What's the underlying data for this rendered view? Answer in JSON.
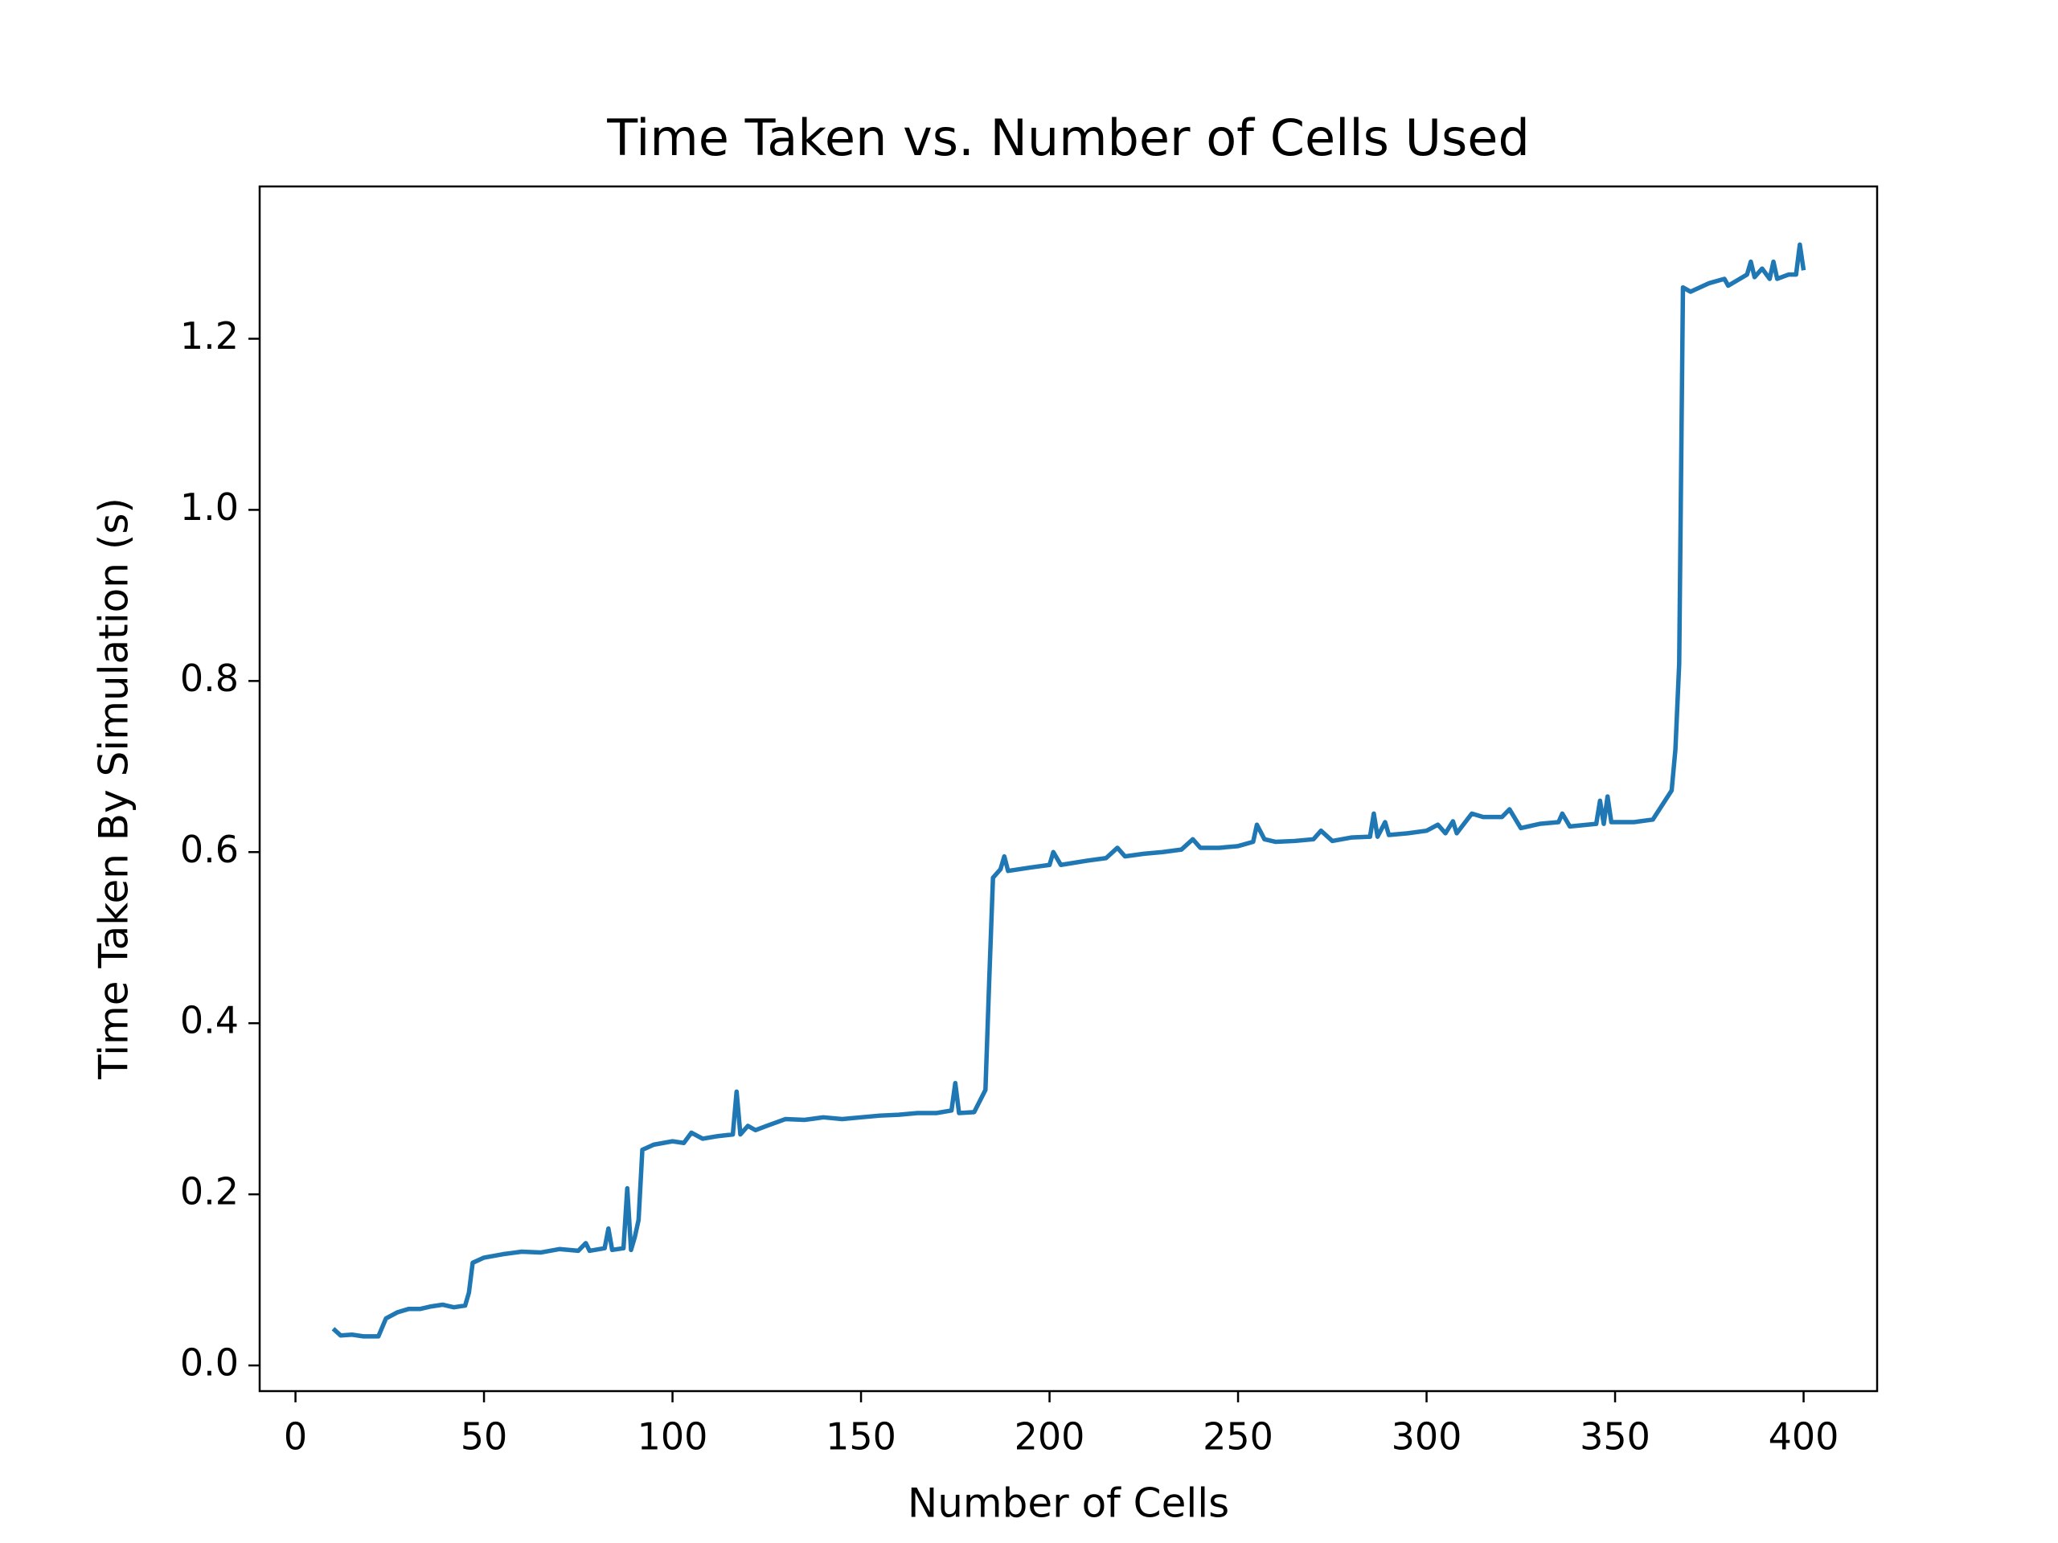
{
  "chart_data": {
    "type": "line",
    "title": "Time Taken vs. Number of Cells Used",
    "xlabel": "Number of Cells",
    "ylabel": "Time Taken By Simulation (s)",
    "x": [
      10,
      12,
      15,
      18,
      22,
      24,
      27,
      30,
      33,
      36,
      39,
      42,
      45,
      46,
      47,
      50,
      55,
      60,
      65,
      70,
      75,
      77,
      78,
      82,
      83,
      84,
      87,
      88,
      89,
      90,
      91,
      92,
      95,
      100,
      103,
      105,
      108,
      112,
      116,
      117,
      118,
      120,
      122,
      125,
      130,
      135,
      140,
      145,
      150,
      155,
      160,
      165,
      170,
      174,
      175,
      176,
      180,
      183,
      184,
      185,
      187,
      188,
      189,
      195,
      200,
      201,
      203,
      210,
      215,
      218,
      220,
      225,
      230,
      235,
      238,
      240,
      245,
      250,
      254,
      255,
      257,
      260,
      265,
      270,
      272,
      275,
      280,
      285,
      286,
      287,
      289,
      290,
      295,
      300,
      303,
      305,
      307,
      308,
      312,
      315,
      320,
      322,
      325,
      330,
      335,
      336,
      338,
      345,
      346,
      347,
      348,
      349,
      355,
      360,
      365,
      366,
      367,
      368,
      370,
      375,
      379,
      380,
      385,
      386,
      387,
      389,
      391,
      392,
      393,
      396,
      398,
      399,
      400
    ],
    "values": [
      0.043,
      0.035,
      0.036,
      0.034,
      0.034,
      0.055,
      0.062,
      0.066,
      0.066,
      0.069,
      0.071,
      0.068,
      0.07,
      0.085,
      0.12,
      0.126,
      0.13,
      0.133,
      0.132,
      0.136,
      0.134,
      0.143,
      0.134,
      0.137,
      0.16,
      0.135,
      0.137,
      0.207,
      0.135,
      0.15,
      0.17,
      0.252,
      0.258,
      0.262,
      0.26,
      0.272,
      0.265,
      0.268,
      0.27,
      0.32,
      0.27,
      0.28,
      0.275,
      0.28,
      0.288,
      0.287,
      0.29,
      0.288,
      0.29,
      0.292,
      0.293,
      0.295,
      0.295,
      0.298,
      0.33,
      0.295,
      0.296,
      0.322,
      0.45,
      0.57,
      0.58,
      0.595,
      0.578,
      0.582,
      0.585,
      0.6,
      0.585,
      0.59,
      0.593,
      0.605,
      0.595,
      0.598,
      0.6,
      0.603,
      0.615,
      0.605,
      0.605,
      0.607,
      0.612,
      0.632,
      0.615,
      0.612,
      0.613,
      0.615,
      0.625,
      0.613,
      0.617,
      0.618,
      0.645,
      0.618,
      0.635,
      0.62,
      0.622,
      0.625,
      0.632,
      0.622,
      0.636,
      0.622,
      0.645,
      0.641,
      0.641,
      0.65,
      0.628,
      0.633,
      0.635,
      0.645,
      0.63,
      0.633,
      0.66,
      0.633,
      0.665,
      0.635,
      0.635,
      0.638,
      0.672,
      0.72,
      0.82,
      1.26,
      1.255,
      1.265,
      1.27,
      1.262,
      1.275,
      1.29,
      1.272,
      1.282,
      1.27,
      1.29,
      1.27,
      1.275,
      1.275,
      1.31,
      1.28
    ],
    "color": "#1f77b4",
    "xlim": [
      -9.5,
      419.5
    ],
    "ylim": [
      -0.03,
      1.378
    ],
    "xticks": [
      0,
      50,
      100,
      150,
      200,
      250,
      300,
      350,
      400
    ],
    "yticks": [
      {
        "value": 0,
        "label": "0.0"
      },
      0.2,
      0.4,
      0.6,
      0.8,
      {
        "value": 1,
        "label": "1.0"
      },
      1.2
    ]
  }
}
